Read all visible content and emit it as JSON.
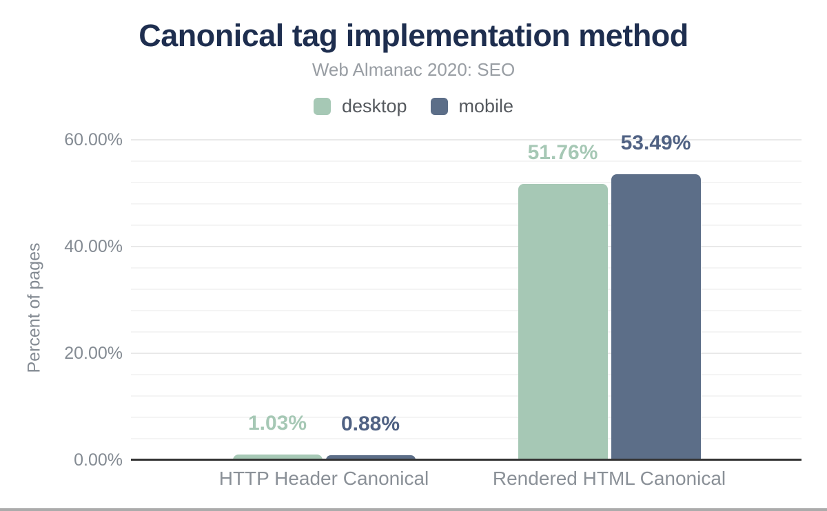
{
  "chart_data": {
    "type": "bar",
    "title": "Canonical tag implementation method",
    "subtitle": "Web Almanac 2020: SEO",
    "ylabel": "Percent of pages",
    "xlabel": "",
    "categories": [
      "HTTP Header Canonical",
      "Rendered HTML Canonical"
    ],
    "series": [
      {
        "name": "desktop",
        "color": "#a6c8b5",
        "label_color": "#a6c8b5",
        "values": [
          1.03,
          51.76
        ],
        "value_labels": [
          "1.03%",
          "51.76%"
        ]
      },
      {
        "name": "mobile",
        "color": "#5c6e88",
        "label_color": "#4f6183",
        "values": [
          0.88,
          53.49
        ],
        "value_labels": [
          "0.88%",
          "53.49%"
        ]
      }
    ],
    "ylim": [
      0,
      60
    ],
    "yticks": [
      {
        "value": 0,
        "label": "0.00%"
      },
      {
        "value": 20,
        "label": "20.00%"
      },
      {
        "value": 40,
        "label": "40.00%"
      },
      {
        "value": 60,
        "label": "60.00%"
      }
    ],
    "minor_tick_step": 4,
    "grid": true,
    "legend_position": "top"
  },
  "colors": {
    "title": "#1e2e4f",
    "subtitle": "#989da3",
    "axis_text": "#848b93",
    "category_text": "#8a9097",
    "gridline_major": "#e9e9e9",
    "gridline_minor": "#f4f4f4",
    "baseline": "#333333",
    "bottom_bar": "#ababab"
  }
}
